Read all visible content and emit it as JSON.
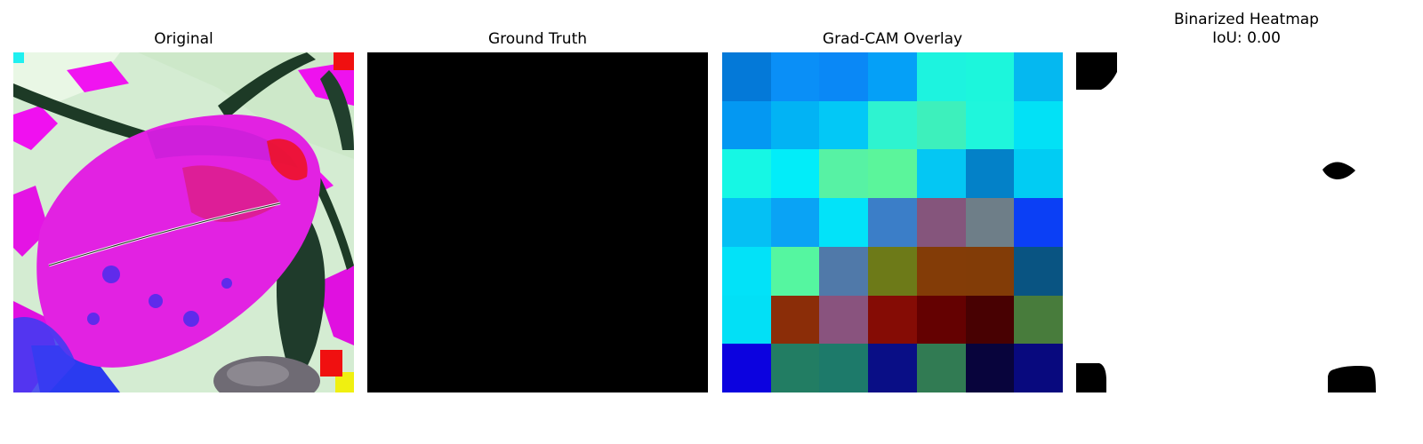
{
  "panels": {
    "original": {
      "title": "Original"
    },
    "ground_truth": {
      "title": "Ground Truth"
    },
    "gradcam": {
      "title": "Grad-CAM Overlay",
      "grid": [
        [
          "#0479d8",
          "#0a8ff7",
          "#0a88f6",
          "#05a0f7",
          "#1df3df",
          "#1cf6dc",
          "#05b8f0"
        ],
        [
          "#0498f2",
          "#02b3f4",
          "#03c8f6",
          "#2ef3d0",
          "#3df0bc",
          "#1ff6dc",
          "#02e1f6"
        ],
        [
          "#16f7e4",
          "#02edf9",
          "#57f2a4",
          "#5bf59b",
          "#04c7f3",
          "#0381c8",
          "#01ccf3"
        ],
        [
          "#05c0f4",
          "#0aa3f5",
          "#02e3f9",
          "#3b7ec8",
          "#85557c",
          "#6e7e88",
          "#0b3ff5"
        ],
        [
          "#02e2f8",
          "#55f6a0",
          "#5079a9",
          "#6d7a18",
          "#833c07",
          "#823c07",
          "#095482"
        ],
        [
          "#02e0f6",
          "#8b2d08",
          "#89537e",
          "#850c05",
          "#640101",
          "#480102",
          "#487c3c"
        ],
        [
          "#0c02df",
          "#227d63",
          "#1d7a6a",
          "#090e86",
          "#317b53",
          "#08043c",
          "#08097e"
        ]
      ]
    },
    "binarized": {
      "title_line1": "Binarized Heatmap",
      "title_line2": "IoU: 0.00"
    }
  }
}
